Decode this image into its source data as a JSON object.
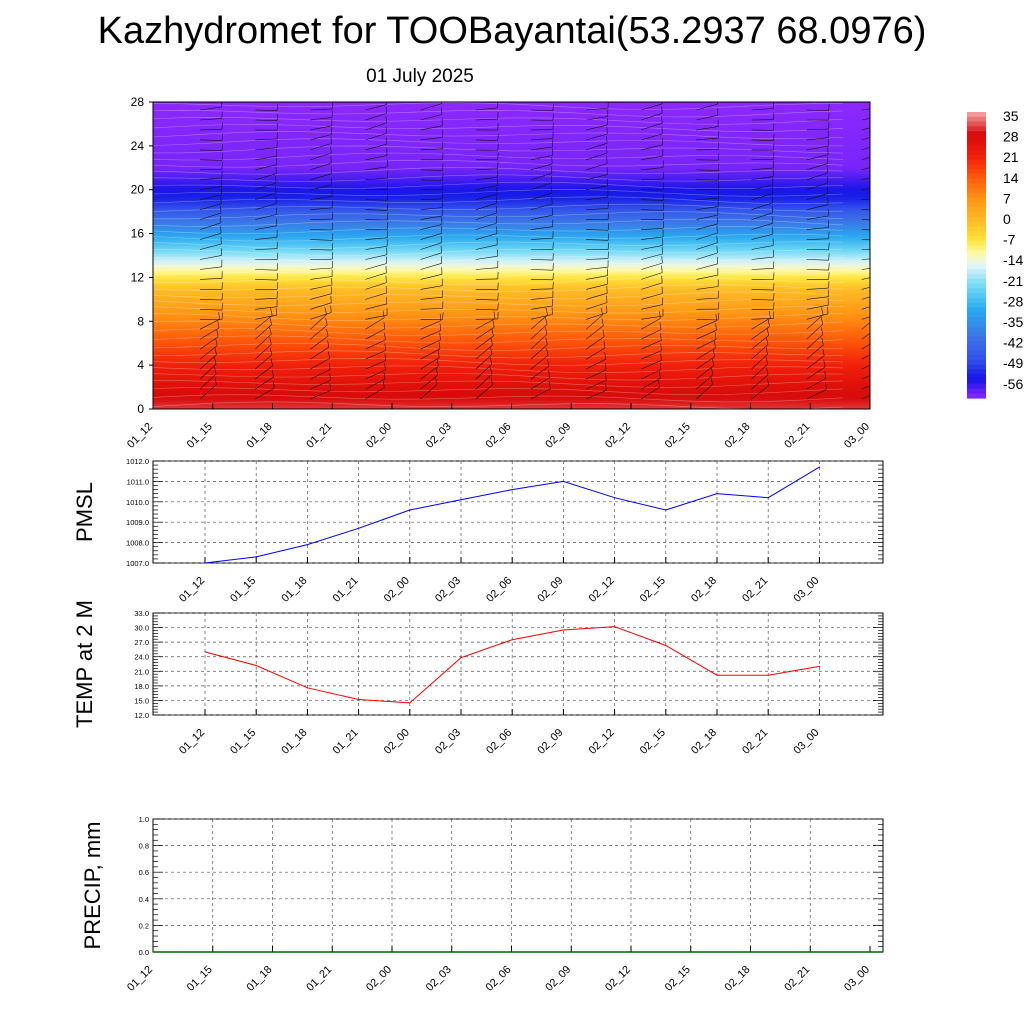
{
  "title": "Kazhydromet for TOOBayantai(53.2937 68.0976)",
  "date": "01 July 2025",
  "chart_data": [
    {
      "type": "heatmap",
      "ylim": [
        0,
        28
      ],
      "yticks": [
        "0",
        "4",
        "8",
        "12",
        "16",
        "20",
        "24",
        "28"
      ],
      "xticks": [
        "01_12",
        "01_15",
        "01_18",
        "01_21",
        "02_00",
        "02_03",
        "02_06",
        "02_09",
        "02_12",
        "02_15",
        "02_18",
        "02_21",
        "03_00"
      ],
      "colorbar_labels": [
        "35",
        "28",
        "21",
        "14",
        "7",
        "0",
        "-7",
        "-14",
        "-21",
        "-28",
        "-35",
        "-42",
        "-49",
        "-56"
      ],
      "levels_top_to_bottom": [
        {
          "y": 28,
          "t": -56
        },
        {
          "y": 22,
          "t": -55
        },
        {
          "y": 19,
          "t": -48
        },
        {
          "y": 16,
          "t": -30
        },
        {
          "y": 14,
          "t": -18
        },
        {
          "y": 13,
          "t": -12
        },
        {
          "y": 11,
          "t": 0
        },
        {
          "y": 8,
          "t": 9
        },
        {
          "y": 5,
          "t": 18
        },
        {
          "y": 2,
          "t": 26
        },
        {
          "y": 0,
          "t": 30
        }
      ],
      "barb_columns": 13,
      "barb_rows": 30
    },
    {
      "type": "line",
      "ylabel": "PMSL",
      "ylim": [
        1007,
        1012
      ],
      "yticks": [
        "1007.0",
        "1008.0",
        "1009.0",
        "1010.0",
        "1011.0",
        "1012.0"
      ],
      "xticks": [
        "01_12",
        "01_15",
        "01_18",
        "01_21",
        "02_00",
        "02_03",
        "02_06",
        "02_09",
        "02_12",
        "02_15",
        "02_18",
        "02_21",
        "03_00"
      ],
      "series": [
        {
          "color": "#0000ff",
          "values": [
            1007.0,
            1007.3,
            1007.9,
            1008.7,
            1009.6,
            1010.1,
            1010.6,
            1011.0,
            1010.2,
            1009.6,
            1010.4,
            1010.2,
            1011.7
          ]
        }
      ],
      "grid": true
    },
    {
      "type": "line",
      "ylabel": "TEMP at 2 M",
      "ylim": [
        12,
        33
      ],
      "yticks": [
        "12.0",
        "15.0",
        "18.0",
        "21.0",
        "24.0",
        "27.0",
        "30.0",
        "33.0"
      ],
      "xticks": [
        "01_12",
        "01_15",
        "01_18",
        "01_21",
        "02_00",
        "02_03",
        "02_06",
        "02_09",
        "02_12",
        "02_15",
        "02_18",
        "02_21",
        "03_00"
      ],
      "series": [
        {
          "color": "#ff0000",
          "values": [
            25.0,
            22.2,
            17.6,
            15.2,
            14.5,
            23.8,
            27.5,
            29.5,
            30.2,
            26.3,
            20.2,
            20.2,
            22.0
          ]
        }
      ],
      "grid": true
    },
    {
      "type": "line",
      "ylabel": "PRECIP, mm",
      "ylim": [
        0,
        1
      ],
      "yticks": [
        "0.0",
        "0.2",
        "0.4",
        "0.6",
        "0.8",
        "1.0"
      ],
      "xticks": [
        "01_12",
        "01_15",
        "01_18",
        "01_21",
        "02_00",
        "02_03",
        "02_06",
        "02_09",
        "02_12",
        "02_15",
        "02_18",
        "02_21",
        "03_00"
      ],
      "series": [
        {
          "color": "#006400",
          "values": [
            0,
            0,
            0,
            0,
            0,
            0,
            0,
            0,
            0,
            0,
            0,
            0,
            0
          ]
        }
      ],
      "grid": true
    }
  ]
}
